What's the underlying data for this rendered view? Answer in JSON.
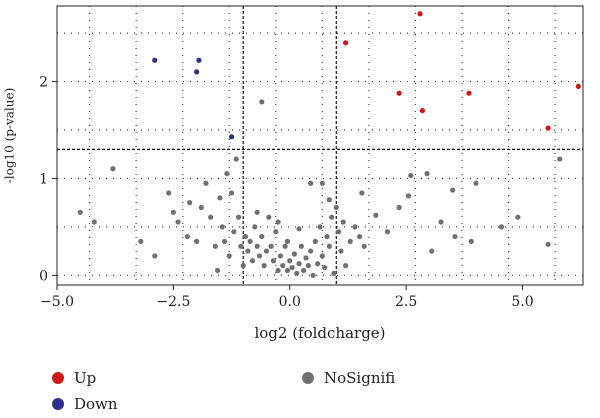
{
  "chart_data": {
    "type": "scatter",
    "title": "",
    "xlabel": "log2 (foldcharge)",
    "ylabel": "-log10 (p-value)",
    "xlim": [
      -5.0,
      6.3
    ],
    "ylim": [
      -0.1,
      2.78
    ],
    "x_ticks": [
      -5.0,
      -2.5,
      0.0,
      2.5,
      5.0
    ],
    "x_tick_labels": [
      "−5.0",
      "−2.5",
      "0.0",
      "2.5",
      "5.0"
    ],
    "y_ticks": [
      0,
      1,
      2
    ],
    "y_tick_labels": [
      "0",
      "1",
      "2"
    ],
    "grid": "dotted",
    "thresholds": {
      "x": [
        -1,
        1
      ],
      "y": 1.3
    },
    "legend_position": "bottom",
    "series": [
      {
        "name": "Up",
        "color": "#cc1a1a",
        "points": [
          [
            2.8,
            2.7
          ],
          [
            1.2,
            2.4
          ],
          [
            2.35,
            1.88
          ],
          [
            3.85,
            1.88
          ],
          [
            6.2,
            1.95
          ],
          [
            2.85,
            1.7
          ],
          [
            5.55,
            1.52
          ]
        ]
      },
      {
        "name": "Down",
        "color": "#2f2f8f",
        "points": [
          [
            -2.9,
            2.22
          ],
          [
            -1.95,
            2.22
          ],
          [
            -2.0,
            2.1
          ],
          [
            -1.25,
            1.43
          ]
        ]
      },
      {
        "name": "NoSignifi",
        "color": "#707070",
        "points": [
          [
            -0.6,
            1.79
          ],
          [
            5.8,
            1.2
          ],
          [
            -3.8,
            1.1
          ],
          [
            2.95,
            1.05
          ],
          [
            2.6,
            1.03
          ],
          [
            3.5,
            0.88
          ],
          [
            -4.5,
            0.65
          ],
          [
            -4.2,
            0.55
          ],
          [
            -3.2,
            0.35
          ],
          [
            -2.6,
            0.85
          ],
          [
            -2.5,
            0.65
          ],
          [
            -2.4,
            0.55
          ],
          [
            -2.2,
            0.4
          ],
          [
            -2.0,
            0.35
          ],
          [
            -1.9,
            0.7
          ],
          [
            -1.8,
            0.95
          ],
          [
            -1.7,
            0.6
          ],
          [
            -1.6,
            0.3
          ],
          [
            -1.5,
            0.8
          ],
          [
            -1.45,
            0.5
          ],
          [
            -1.4,
            0.35
          ],
          [
            -1.35,
            1.05
          ],
          [
            -1.3,
            0.2
          ],
          [
            -1.2,
            0.45
          ],
          [
            -1.15,
            1.2
          ],
          [
            -1.1,
            0.6
          ],
          [
            -1.05,
            0.3
          ],
          [
            -1.0,
            0.1
          ],
          [
            -0.95,
            0.4
          ],
          [
            -0.9,
            0.25
          ],
          [
            -0.85,
            0.35
          ],
          [
            -0.8,
            0.15
          ],
          [
            -0.75,
            0.5
          ],
          [
            -0.7,
            0.3
          ],
          [
            -0.65,
            0.2
          ],
          [
            -0.6,
            0.4
          ],
          [
            -0.55,
            0.1
          ],
          [
            -0.5,
            0.25
          ],
          [
            -0.45,
            0.6
          ],
          [
            -0.4,
            0.3
          ],
          [
            -0.35,
            0.15
          ],
          [
            -0.3,
            0.45
          ],
          [
            -0.25,
            0.05
          ],
          [
            -0.2,
            0.2
          ],
          [
            -0.15,
            0.1
          ],
          [
            -0.1,
            0.3
          ],
          [
            -0.05,
            0.05
          ],
          [
            0.0,
            0.15
          ],
          [
            0.05,
            0.08
          ],
          [
            0.1,
            0.22
          ],
          [
            0.15,
            0.02
          ],
          [
            0.2,
            0.12
          ],
          [
            0.25,
            0.3
          ],
          [
            0.3,
            0.05
          ],
          [
            0.35,
            0.18
          ],
          [
            0.4,
            0.1
          ],
          [
            0.45,
            0.25
          ],
          [
            0.5,
            0.0
          ],
          [
            0.55,
            0.35
          ],
          [
            0.6,
            0.12
          ],
          [
            0.65,
            0.5
          ],
          [
            0.7,
            0.2
          ],
          [
            0.75,
            0.08
          ],
          [
            0.8,
            0.4
          ],
          [
            0.85,
            0.3
          ],
          [
            0.9,
            0.6
          ],
          [
            0.95,
            0.02
          ],
          [
            1.0,
            0.7
          ],
          [
            1.05,
            0.45
          ],
          [
            1.1,
            0.25
          ],
          [
            1.15,
            0.55
          ],
          [
            1.2,
            0.1
          ],
          [
            1.3,
            0.35
          ],
          [
            1.4,
            0.5
          ],
          [
            1.5,
            0.4
          ],
          [
            1.6,
            0.3
          ],
          [
            2.1,
            0.45
          ],
          [
            2.35,
            0.7
          ],
          [
            2.55,
            0.82
          ],
          [
            3.25,
            0.55
          ],
          [
            3.55,
            0.4
          ],
          [
            3.9,
            0.35
          ],
          [
            4.0,
            0.95
          ],
          [
            4.55,
            0.5
          ],
          [
            4.9,
            0.6
          ],
          [
            5.55,
            0.32
          ],
          [
            -2.9,
            0.2
          ],
          [
            -2.15,
            0.75
          ],
          [
            -1.55,
            0.05
          ],
          [
            0.85,
            0.78
          ],
          [
            0.45,
            0.95
          ],
          [
            -0.25,
            0.55
          ],
          [
            0.2,
            0.48
          ],
          [
            -0.7,
            0.65
          ],
          [
            1.55,
            0.85
          ],
          [
            -1.25,
            0.85
          ],
          [
            0.7,
            0.95
          ],
          [
            1.85,
            0.62
          ],
          [
            3.05,
            0.25
          ],
          [
            -0.05,
            0.35
          ]
        ]
      }
    ]
  },
  "legend": [
    {
      "label": "Up",
      "color": "#cc1a1a"
    },
    {
      "label": "Down",
      "color": "#2f2f8f"
    },
    {
      "label": "NoSignifi",
      "color": "#707070"
    }
  ]
}
